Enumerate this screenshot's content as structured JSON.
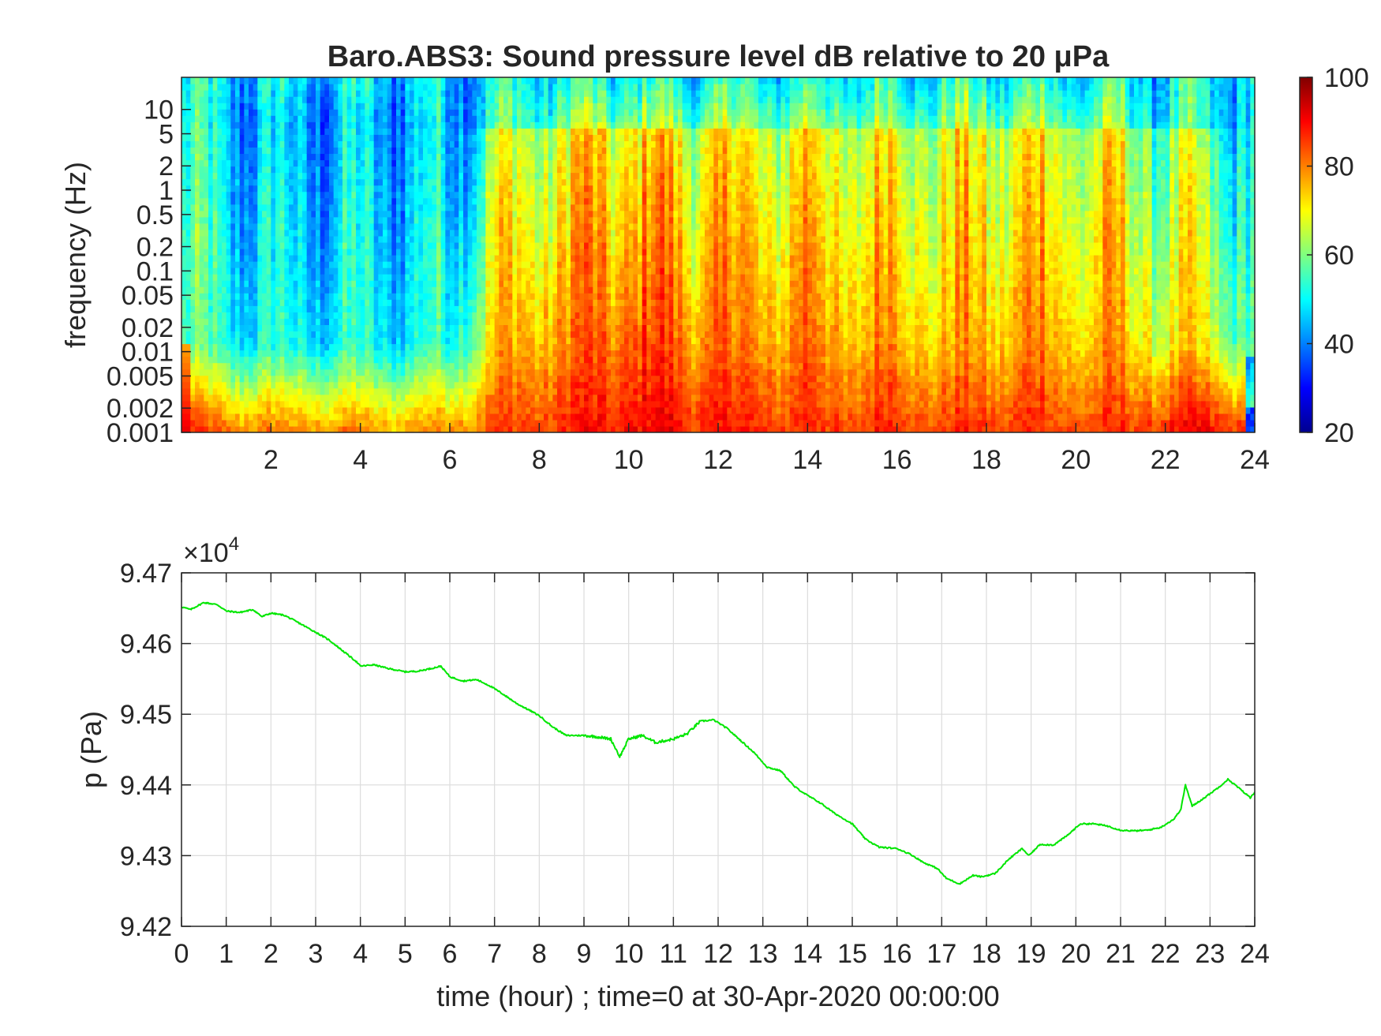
{
  "chart_data": [
    {
      "type": "heatmap",
      "title": "Baro.ABS3: Sound pressure level dB relative to 20 μPa",
      "xlabel": "",
      "ylabel": "frequency (Hz)",
      "xlim": [
        0,
        24
      ],
      "x_ticks": [
        "2",
        "4",
        "6",
        "8",
        "10",
        "12",
        "14",
        "16",
        "18",
        "20",
        "22",
        "24"
      ],
      "y_scale": "log",
      "ylim": [
        0.001,
        25
      ],
      "y_ticks": [
        "0.001",
        "0.002",
        "0.005",
        "0.01",
        "0.02",
        "0.05",
        "0.1",
        "0.2",
        "0.5",
        "1",
        "2",
        "5",
        "10"
      ],
      "colorbar": {
        "range": [
          20,
          100
        ],
        "ticks": [
          "20",
          "40",
          "60",
          "80",
          "100"
        ],
        "colormap": "jet"
      },
      "level_profile_by_hour": {
        "hours": [
          0,
          1,
          2,
          3,
          4,
          5,
          6,
          7,
          8,
          9,
          10,
          11,
          12,
          13,
          14,
          15,
          16,
          17,
          18,
          19,
          20,
          21,
          22,
          23,
          24
        ],
        "low_freq_level_db": [
          88,
          82,
          80,
          80,
          78,
          78,
          80,
          84,
          86,
          88,
          90,
          90,
          88,
          87,
          86,
          86,
          87,
          85,
          86,
          86,
          85,
          85,
          88,
          90,
          85
        ],
        "mid_freq_level_db": [
          55,
          52,
          50,
          50,
          50,
          50,
          52,
          72,
          78,
          80,
          84,
          82,
          80,
          78,
          80,
          76,
          78,
          74,
          76,
          78,
          76,
          74,
          70,
          68,
          55
        ],
        "high_freq_level_db": [
          50,
          45,
          42,
          42,
          42,
          44,
          44,
          54,
          58,
          62,
          64,
          62,
          62,
          60,
          62,
          60,
          62,
          60,
          62,
          62,
          60,
          58,
          52,
          50,
          48
        ]
      },
      "grid": false
    },
    {
      "type": "line",
      "title": "",
      "xlabel": "time (hour) ; time=0 at 30-Apr-2020 00:00:00",
      "ylabel": "p (Pa)",
      "y_multiplier": "×10^4",
      "xlim": [
        0,
        24
      ],
      "ylim": [
        94200,
        94700
      ],
      "x_ticks": [
        "0",
        "1",
        "2",
        "3",
        "4",
        "5",
        "6",
        "7",
        "8",
        "9",
        "10",
        "11",
        "12",
        "13",
        "14",
        "15",
        "16",
        "17",
        "18",
        "19",
        "20",
        "21",
        "22",
        "23",
        "24"
      ],
      "y_ticks": [
        "9.42",
        "9.43",
        "9.44",
        "9.45",
        "9.46",
        "9.47"
      ],
      "grid": true,
      "series": [
        {
          "color": "#00e600",
          "x": [
            0,
            0.2,
            0.5,
            0.8,
            1.0,
            1.3,
            1.6,
            1.8,
            2.0,
            2.3,
            2.6,
            3.0,
            3.3,
            3.6,
            3.9,
            4.0,
            4.3,
            4.6,
            5.0,
            5.3,
            5.6,
            5.8,
            6.0,
            6.3,
            6.6,
            6.9,
            7.2,
            7.5,
            7.8,
            8.0,
            8.3,
            8.6,
            9.0,
            9.3,
            9.6,
            9.8,
            10.0,
            10.3,
            10.6,
            11.0,
            11.3,
            11.6,
            11.9,
            12.2,
            12.5,
            12.8,
            13.1,
            13.4,
            13.7,
            14.0,
            14.3,
            14.6,
            15.0,
            15.3,
            15.6,
            16.0,
            16.3,
            16.6,
            16.9,
            17.1,
            17.4,
            17.7,
            17.9,
            18.2,
            18.5,
            18.8,
            18.95,
            19.2,
            19.5,
            19.8,
            20.1,
            20.4,
            20.7,
            21.0,
            21.3,
            21.6,
            21.9,
            22.2,
            22.35,
            22.45,
            22.6,
            22.9,
            23.2,
            23.4,
            23.6,
            23.9,
            24.0
          ],
          "y": [
            94652,
            94648,
            94658,
            94655,
            94646,
            94644,
            94648,
            94638,
            94643,
            94640,
            94630,
            94616,
            94605,
            94590,
            94575,
            94568,
            94570,
            94565,
            94560,
            94561,
            94565,
            94568,
            94553,
            94547,
            94549,
            94540,
            94528,
            94515,
            94505,
            94498,
            94482,
            94470,
            94470,
            94468,
            94465,
            94440,
            94465,
            94470,
            94460,
            94465,
            94472,
            94490,
            94492,
            94480,
            94463,
            94446,
            94425,
            94420,
            94398,
            94385,
            94374,
            94360,
            94345,
            94323,
            94312,
            94310,
            94302,
            94290,
            94282,
            94268,
            94260,
            94272,
            94270,
            94275,
            94295,
            94310,
            94300,
            94316,
            94315,
            94328,
            94345,
            94345,
            94342,
            94336,
            94335,
            94336,
            94340,
            94352,
            94366,
            94400,
            94370,
            94383,
            94397,
            94408,
            94398,
            94382,
            94390
          ]
        }
      ]
    }
  ]
}
